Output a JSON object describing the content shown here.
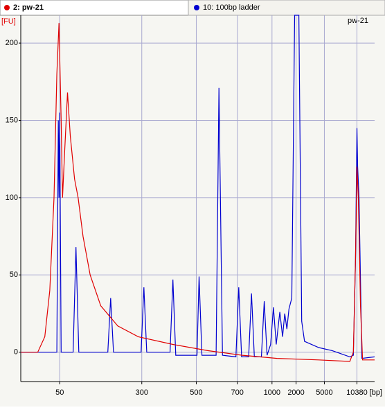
{
  "chart_data": {
    "type": "line",
    "y_label": "[FU]",
    "x_label": "[bp]",
    "annotation": "pw-21",
    "xlim": [
      20,
      70
    ],
    "ylim": [
      -19,
      218
    ],
    "xticks": [
      {
        "value": 25.5,
        "label": "50"
      },
      {
        "value": 37.1,
        "label": "300"
      },
      {
        "value": 44.8,
        "label": "500"
      },
      {
        "value": 50.6,
        "label": "700"
      },
      {
        "value": 55.5,
        "label": "1000"
      },
      {
        "value": 58.9,
        "label": "2000"
      },
      {
        "value": 62.9,
        "label": "5000"
      },
      {
        "value": 67.5,
        "label": "10380"
      }
    ],
    "yticks": [
      0,
      50,
      100,
      150,
      200
    ],
    "grid": true,
    "series": [
      {
        "name": "2: pw-21",
        "color": "#e00000",
        "x": [
          20.0,
          22.4,
          23.4,
          24.1,
          24.7,
          25.1,
          25.4,
          25.7,
          25.9,
          26.2,
          26.6,
          27.0,
          27.6,
          28.1,
          28.8,
          29.8,
          31.3,
          33.7,
          36.6,
          41.5,
          46.4,
          51.3,
          56.2,
          62.1,
          66.5,
          67.0,
          67.3,
          67.5,
          67.7,
          68.0,
          68.3,
          70.0
        ],
        "values": [
          0,
          0,
          10,
          40,
          100,
          180,
          213,
          150,
          100,
          130,
          168,
          140,
          112,
          100,
          75,
          50,
          30,
          17,
          10,
          5,
          1,
          -2,
          -4,
          -5,
          -6,
          0,
          60,
          120,
          100,
          30,
          -5,
          -5
        ]
      },
      {
        "name": "10: 100bp ladder",
        "color": "#0000d0",
        "x": [
          20.0,
          24.4,
          25.1,
          25.3,
          25.4,
          25.5,
          25.7,
          27.4,
          27.8,
          28.2,
          32.3,
          32.7,
          33.1,
          37.0,
          37.4,
          37.8,
          41.1,
          41.5,
          41.9,
          44.9,
          45.2,
          45.6,
          47.6,
          48.0,
          48.5,
          50.4,
          50.8,
          51.2,
          52.2,
          52.6,
          53.0,
          54.0,
          54.4,
          54.8,
          55.3,
          55.7,
          56.1,
          56.6,
          57.0,
          57.3,
          57.6,
          57.9,
          58.3,
          58.7,
          59.3,
          59.7,
          60.1,
          62.1,
          64.0,
          66.5,
          67.0,
          67.3,
          67.5,
          67.6,
          67.8,
          68.2,
          70.0
        ],
        "values": [
          0,
          0,
          0,
          150,
          100,
          155,
          0,
          0,
          68,
          0,
          0,
          35,
          0,
          0,
          42,
          0,
          0,
          47,
          -2,
          -2,
          49,
          -2,
          -2,
          171,
          -2,
          -3,
          42,
          -3,
          -3,
          38,
          -3,
          -3,
          33,
          -2,
          5,
          29,
          5,
          26,
          10,
          25,
          15,
          28,
          35,
          218,
          218,
          20,
          7,
          3,
          1,
          -3,
          -2,
          60,
          145,
          120,
          100,
          -4,
          -3
        ]
      }
    ]
  }
}
